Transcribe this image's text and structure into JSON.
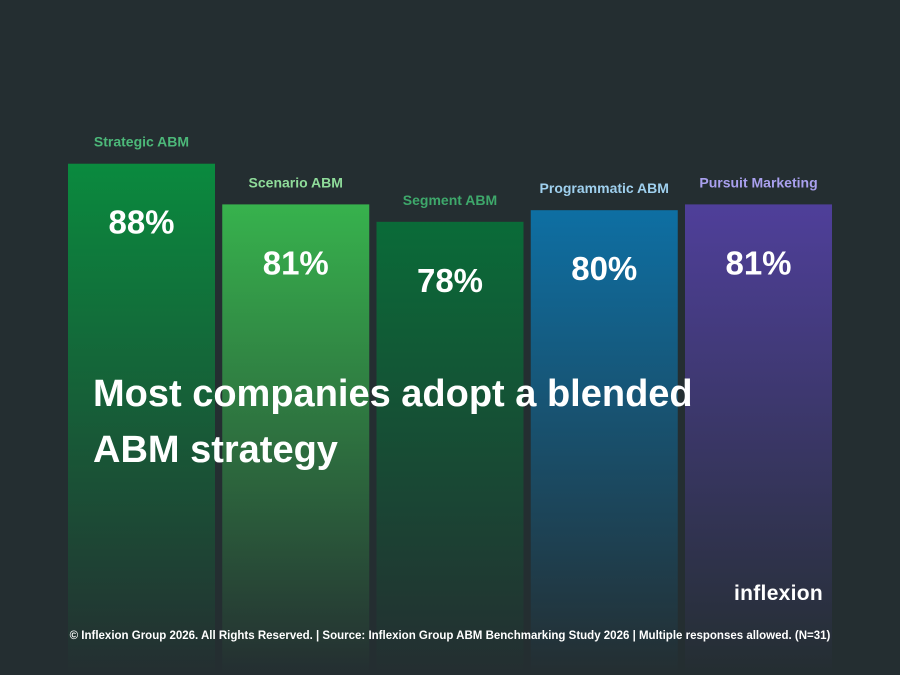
{
  "chart_data": {
    "type": "bar",
    "categories": [
      "Strategic ABM",
      "Scenario ABM",
      "Segment ABM",
      "Programmatic ABM",
      "Pursuit Marketing"
    ],
    "values": [
      88,
      81,
      78,
      80,
      81
    ],
    "value_labels": [
      "88%",
      "81%",
      "78%",
      "80%",
      "81%"
    ],
    "ylim": [
      0,
      100
    ],
    "colors": [
      "#0a8a3e",
      "#37b24d",
      "#0a6b38",
      "#0e6fa3",
      "#4f3f9a"
    ],
    "label_colors": [
      "#4cb879",
      "#8fdc9a",
      "#3ea86b",
      "#9fd0ee",
      "#a9a0ee"
    ],
    "grid": false,
    "legend": "none"
  },
  "headline": "Most companies adopt a blended ABM strategy",
  "logo": "inflexion",
  "footer": "© Inflexion Group 2026. All Rights Reserved. | Source: Inflexion Group ABM Benchmarking Study 2026 | Multiple responses allowed. (N=31)"
}
